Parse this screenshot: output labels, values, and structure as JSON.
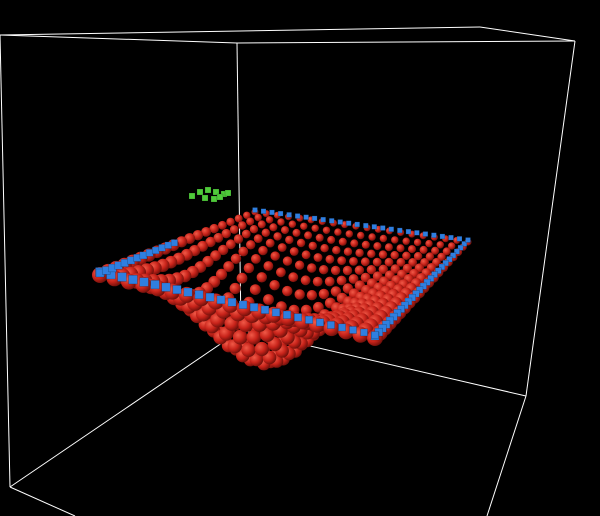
{
  "scene": {
    "background_color": "#000000",
    "box_edge_color": "#ffffff",
    "cloth_particle_color": "#d42a1e",
    "pinned_edge_cube_color": "#2f7fe0",
    "floating_cube_color": "#4fc93a",
    "cloth_grid_size": 20
  }
}
